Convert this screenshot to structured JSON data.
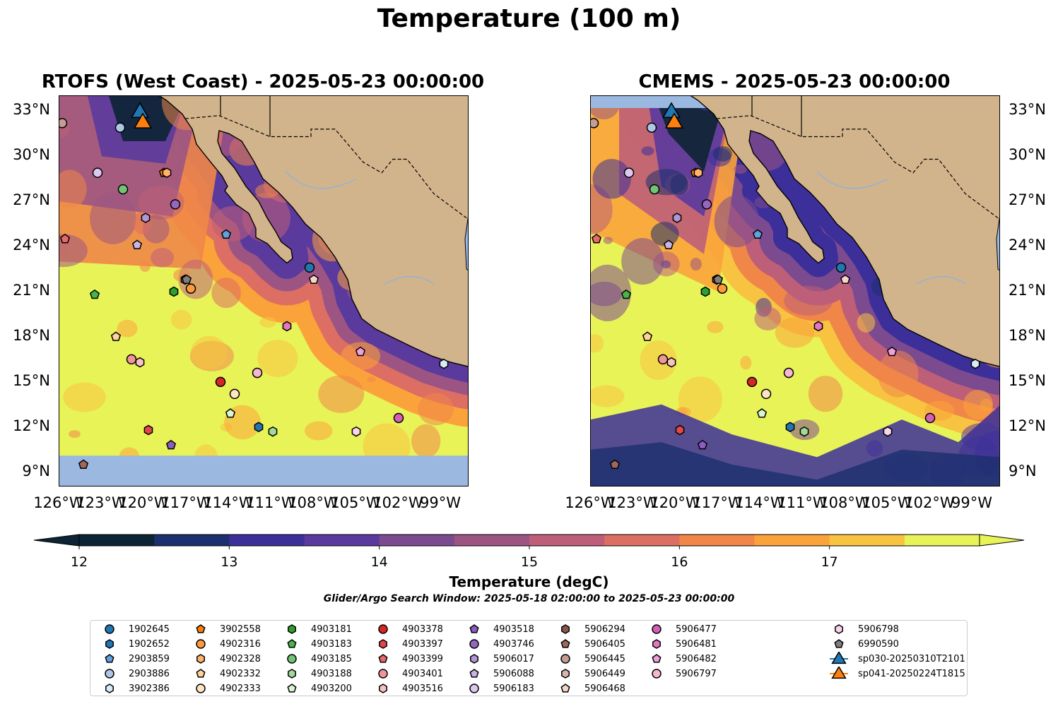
{
  "title": "Temperature (100 m)",
  "panels": [
    {
      "id": "left",
      "title": "RTOFS (West Coast) - 2025-05-23 00:00:00"
    },
    {
      "id": "right",
      "title": "CMEMS - 2025-05-23 00:00:00"
    }
  ],
  "colors": {
    "land": "#d2b48c",
    "no_data": "#9bb8e0",
    "colormap": [
      "#0c2433",
      "#1c2f6e",
      "#3c2f9a",
      "#5b3a9d",
      "#7b4a8f",
      "#9c5583",
      "#bd5f78",
      "#dd6e63",
      "#f08748",
      "#fba33b",
      "#f7c341",
      "#e8f357"
    ]
  },
  "chart_data": {
    "type": "heatmap",
    "title": "Temperature (100 m)",
    "variable": "Temperature (degC)",
    "colorbar": {
      "label": "Temperature (degC)",
      "ticks": [
        12,
        13,
        14,
        15,
        16,
        17
      ],
      "levels": [
        12,
        12.5,
        13,
        13.5,
        14,
        14.5,
        15,
        15.5,
        16,
        16.5,
        17,
        17.5
      ],
      "extend": "both"
    },
    "xticks": [
      "126°W",
      "123°W",
      "120°W",
      "117°W",
      "114°W",
      "111°W",
      "108°W",
      "105°W",
      "102°W",
      "99°W"
    ],
    "yticks": [
      "33°N",
      "30°N",
      "27°N",
      "24°N",
      "21°N",
      "18°N",
      "15°N",
      "12°N",
      "9°N"
    ],
    "xlim": [
      -126,
      -97
    ],
    "ylim": [
      8,
      34
    ],
    "search_window": "Glider/Argo Search Window: 2025-05-18 02:00:00 to 2025-05-23 00:00:00",
    "floats": [
      {
        "id": "1902645",
        "lon": -108.3,
        "lat": 22.6,
        "marker": "circle",
        "color": "#1f77b4"
      },
      {
        "id": "1902652",
        "lon": -111.9,
        "lat": 12.0,
        "marker": "hexagon",
        "color": "#1f77b4"
      },
      {
        "id": "2903859",
        "lon": -114.2,
        "lat": 24.8,
        "marker": "pentagon",
        "color": "#5fa2dd"
      },
      {
        "id": "2903886",
        "lon": -121.7,
        "lat": 31.9,
        "marker": "circle",
        "color": "#aec7e8"
      },
      {
        "id": "3902386",
        "lon": -98.8,
        "lat": 16.2,
        "marker": "hexagon",
        "color": "#d6eaf8"
      },
      {
        "id": "3902558",
        "lon": -118.6,
        "lat": 28.9,
        "marker": "pentagon",
        "color": "#ff7f0e"
      },
      {
        "id": "4902316",
        "lon": -116.7,
        "lat": 21.2,
        "marker": "circle",
        "color": "#ff9a3c"
      },
      {
        "id": "4902328",
        "lon": -118.4,
        "lat": 28.9,
        "marker": "hexagon",
        "color": "#ffb36b"
      },
      {
        "id": "4902332",
        "lon": -122.0,
        "lat": 18.0,
        "marker": "pentagon",
        "color": "#ffd29b"
      },
      {
        "id": "4902333",
        "lon": -113.6,
        "lat": 14.2,
        "marker": "circle",
        "color": "#ffe4c4"
      },
      {
        "id": "4903181",
        "lon": -117.9,
        "lat": 21.0,
        "marker": "hexagon",
        "color": "#2ca02c"
      },
      {
        "id": "4903183",
        "lon": -123.5,
        "lat": 20.8,
        "marker": "pentagon",
        "color": "#48b548"
      },
      {
        "id": "4903185",
        "lon": -121.5,
        "lat": 27.8,
        "marker": "circle",
        "color": "#74c476"
      },
      {
        "id": "4903188",
        "lon": -110.9,
        "lat": 11.7,
        "marker": "hexagon",
        "color": "#a1d99b"
      },
      {
        "id": "4903200",
        "lon": -113.9,
        "lat": 12.9,
        "marker": "pentagon",
        "color": "#d9f5d4"
      },
      {
        "id": "4903378",
        "lon": -114.6,
        "lat": 15.0,
        "marker": "circle",
        "color": "#d62728"
      },
      {
        "id": "4903397",
        "lon": -119.7,
        "lat": 11.8,
        "marker": "hexagon",
        "color": "#e0474a"
      },
      {
        "id": "4903399",
        "lon": -125.6,
        "lat": 24.5,
        "marker": "pentagon",
        "color": "#e8686a"
      },
      {
        "id": "4903401",
        "lon": -120.9,
        "lat": 16.5,
        "marker": "circle",
        "color": "#f0959a"
      },
      {
        "id": "4903516",
        "lon": -120.3,
        "lat": 16.3,
        "marker": "hexagon",
        "color": "#f7c2c4"
      },
      {
        "id": "4903518",
        "lon": -118.1,
        "lat": 10.8,
        "marker": "pentagon",
        "color": "#8c5cc0"
      },
      {
        "id": "4903746",
        "lon": -117.8,
        "lat": 26.8,
        "marker": "circle",
        "color": "#9467bd"
      },
      {
        "id": "5906017",
        "lon": -119.9,
        "lat": 25.9,
        "marker": "hexagon",
        "color": "#b096d3"
      },
      {
        "id": "5906088",
        "lon": -120.5,
        "lat": 24.1,
        "marker": "pentagon",
        "color": "#cab2e6"
      },
      {
        "id": "5906183",
        "lon": -123.3,
        "lat": 28.9,
        "marker": "circle",
        "color": "#ddc8f0"
      },
      {
        "id": "5906294",
        "lon": -117.1,
        "lat": 21.8,
        "marker": "hexagon",
        "color": "#8c564b"
      },
      {
        "id": "5906405",
        "lon": -124.3,
        "lat": 9.5,
        "marker": "pentagon",
        "color": "#a0685c"
      },
      {
        "id": "5906445",
        "lon": -125.8,
        "lat": 32.2,
        "marker": "circle",
        "color": "#c49c94"
      },
      {
        "id": "5906449",
        "lon": -112.0,
        "lat": 15.6,
        "marker": "hexagon",
        "color": "#d9b4ad"
      },
      {
        "id": "5906468",
        "lon": -108.0,
        "lat": 21.8,
        "marker": "pentagon",
        "color": "#f5d5c8"
      },
      {
        "id": "5906477",
        "lon": -102.0,
        "lat": 12.6,
        "marker": "circle",
        "color": "#d35fb7"
      },
      {
        "id": "5906481",
        "lon": -109.9,
        "lat": 18.7,
        "marker": "hexagon",
        "color": "#e377c2"
      },
      {
        "id": "5906482",
        "lon": -104.7,
        "lat": 17.0,
        "marker": "pentagon",
        "color": "#f09fdb"
      },
      {
        "id": "5906797",
        "lon": -112.0,
        "lat": 15.6,
        "marker": "circle",
        "color": "#f7b6d2"
      },
      {
        "id": "5906798",
        "lon": -105.0,
        "lat": 11.7,
        "marker": "hexagon",
        "color": "#fad4ea"
      },
      {
        "id": "6990590",
        "lon": -117.0,
        "lat": 21.8,
        "marker": "pentagon",
        "color": "#7f7f7f"
      }
    ],
    "gliders": [
      {
        "id": "sp030-20250310T2101",
        "lon": -120.3,
        "lat": 32.9,
        "marker": "triangle",
        "color": "#1f77b4"
      },
      {
        "id": "sp041-20250224T1815",
        "lon": -120.1,
        "lat": 32.2,
        "marker": "triangle",
        "color": "#ff7f0e"
      }
    ]
  }
}
